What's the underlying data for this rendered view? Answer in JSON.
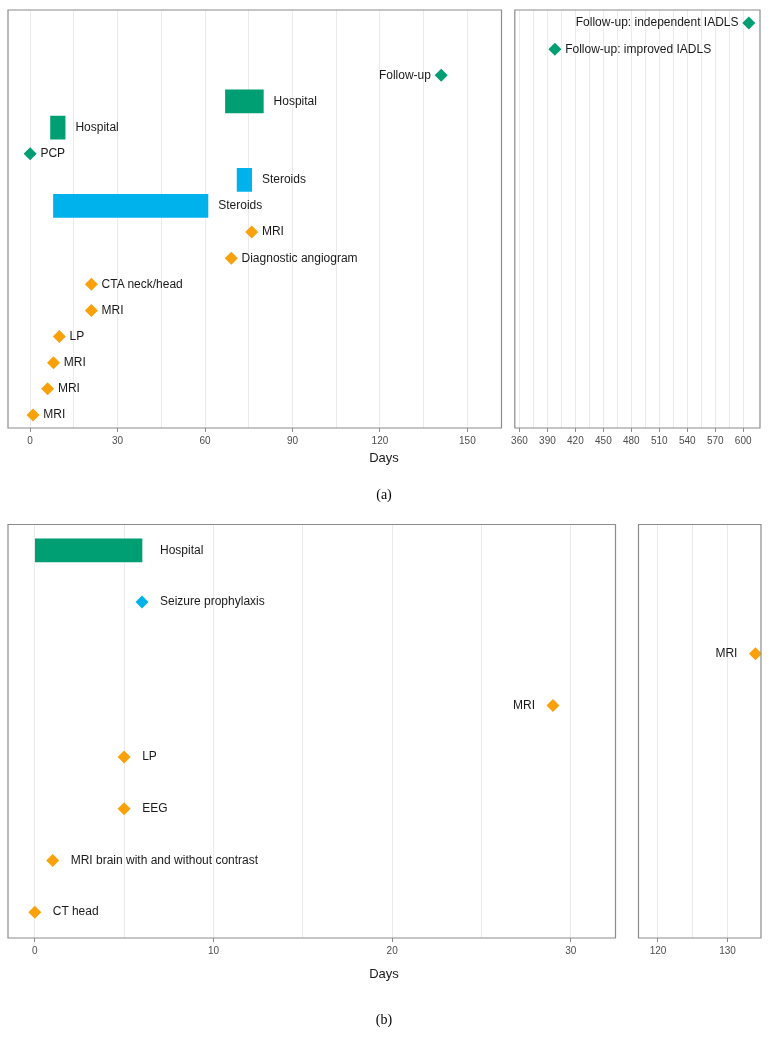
{
  "chart_data": [
    {
      "type": "bar",
      "orientation": "horizontal",
      "xlabel": "Days",
      "annotations": [
        "(a)"
      ],
      "grid": "x",
      "marker": "diamond",
      "categories": [
        null,
        null,
        null,
        null,
        null,
        null,
        null,
        null,
        null,
        null,
        null,
        null,
        null,
        null,
        null,
        null
      ],
      "xlim": [
        -7.6,
        161.7
      ],
      "xticks": [
        0,
        {
          "value": 15,
          "label": null
        },
        30,
        {
          "value": 45,
          "label": null
        },
        60,
        {
          "value": 75,
          "label": null
        },
        90,
        {
          "value": 105,
          "label": null
        },
        120,
        {
          "value": 135,
          "label": null
        },
        150
      ],
      "series": [
        {
          "color": "#009e73",
          "base": [
            null,
            null,
            null,
            67,
            7,
            null,
            null,
            null,
            null,
            null,
            null,
            null,
            null,
            null,
            null,
            null
          ],
          "values": [
            null,
            null,
            null,
            13,
            5,
            null,
            null,
            null,
            null,
            null,
            null,
            null,
            null,
            null,
            null,
            null
          ],
          "value_labels": [
            null,
            null,
            null,
            "Hospital",
            "Hospital",
            null,
            null,
            null,
            null,
            null,
            null,
            null,
            null,
            null,
            null,
            null
          ]
        },
        {
          "color": "#00b2ec",
          "base": [
            null,
            null,
            null,
            null,
            null,
            null,
            71,
            8,
            null,
            null,
            null,
            null,
            null,
            null,
            null,
            null
          ],
          "values": [
            null,
            null,
            null,
            null,
            null,
            null,
            5,
            53,
            null,
            null,
            null,
            null,
            null,
            null,
            null,
            null
          ],
          "value_labels": [
            null,
            null,
            null,
            null,
            null,
            null,
            "Steroids",
            "Steroids",
            null,
            null,
            null,
            null,
            null,
            null,
            null,
            null
          ]
        },
        {
          "type": "scatter",
          "color": "#009e73",
          "values": [
            null,
            null,
            141,
            null,
            null,
            0,
            null,
            null,
            null,
            null,
            null,
            null,
            null,
            null,
            null,
            null
          ],
          "value_labels": [
            null,
            null,
            "Follow-up",
            null,
            null,
            "PCP",
            null,
            null,
            null,
            null,
            null,
            null,
            null,
            null,
            null,
            null
          ]
        },
        {
          "type": "scatter",
          "color": "#f9a10a",
          "values": [
            null,
            null,
            null,
            null,
            null,
            null,
            null,
            null,
            76,
            69,
            21,
            21,
            10,
            8,
            6,
            1
          ],
          "value_labels": [
            null,
            null,
            null,
            null,
            null,
            null,
            null,
            null,
            "MRI",
            "Diagnostic angiogram",
            "CTA neck/head",
            "MRI",
            "LP",
            "MRI",
            "MRI",
            "MRI"
          ]
        }
      ]
    },
    {
      "type": "bar",
      "orientation": "horizontal",
      "grid": "x",
      "marker": "diamond",
      "categories": [
        null,
        null,
        null,
        null,
        null,
        null,
        null,
        null,
        null,
        null,
        null,
        null,
        null,
        null,
        null,
        null
      ],
      "xlim": [
        355,
        618
      ],
      "xticks": [
        360,
        {
          "value": 375,
          "label": null
        },
        390,
        {
          "value": 405,
          "label": null
        },
        420,
        {
          "value": 435,
          "label": null
        },
        450,
        {
          "value": 465,
          "label": null
        },
        480,
        {
          "value": 495,
          "label": null
        },
        510,
        {
          "value": 525,
          "label": null
        },
        540,
        {
          "value": 555,
          "label": null
        },
        570,
        {
          "value": 585,
          "label": null
        },
        600
      ],
      "series": [
        {
          "type": "scatter",
          "color": "#009e73",
          "values": [
            606,
            398,
            null,
            null,
            null,
            null,
            null,
            null,
            null,
            null,
            null,
            null,
            null,
            null,
            null,
            null
          ],
          "value_labels": [
            "Follow-up: independent IADLS",
            "Follow-up: improved IADLS",
            null,
            null,
            null,
            null,
            null,
            null,
            null,
            null,
            null,
            null,
            null,
            null,
            null,
            null
          ]
        }
      ]
    },
    {
      "type": "bar",
      "orientation": "horizontal",
      "xlabel": "Days",
      "annotations": [
        "(b)"
      ],
      "grid": "x",
      "marker": "diamond",
      "categories": [
        null,
        null,
        null,
        null,
        null,
        null,
        null,
        null
      ],
      "xlim": [
        -1.5,
        32.5
      ],
      "xticks": [
        0,
        {
          "value": 5,
          "label": null
        },
        10,
        {
          "value": 15,
          "label": null
        },
        20,
        {
          "value": 25,
          "label": null
        },
        30
      ],
      "series": [
        {
          "color": "#009e73",
          "base": [
            0,
            null,
            null,
            null,
            null,
            null,
            null,
            null
          ],
          "values": [
            6,
            null,
            null,
            null,
            null,
            null,
            null,
            null
          ],
          "value_labels": [
            "Hospital",
            null,
            null,
            null,
            null,
            null,
            null,
            null
          ]
        },
        {
          "type": "scatter",
          "color": "#00b2ec",
          "values": [
            null,
            6,
            null,
            null,
            null,
            null,
            null,
            null
          ],
          "value_labels": [
            null,
            "Seizure prophylaxis",
            null,
            null,
            null,
            null,
            null,
            null
          ]
        },
        {
          "type": "scatter",
          "color": "#f9a10a",
          "values": [
            null,
            null,
            null,
            29,
            5,
            5,
            1,
            0
          ],
          "value_labels": [
            null,
            null,
            null,
            "MRI",
            "LP",
            "EEG",
            "MRI brain with and without contrast",
            "CT head"
          ]
        }
      ]
    },
    {
      "type": "bar",
      "orientation": "horizontal",
      "grid": "x",
      "marker": "diamond",
      "categories": [
        null,
        null,
        null,
        null,
        null,
        null,
        null,
        null
      ],
      "xlim": [
        117.2,
        134.8
      ],
      "xticks": [
        120,
        {
          "value": 125,
          "label": null
        },
        130
      ],
      "series": [
        {
          "type": "scatter",
          "color": "#f9a10a",
          "values": [
            null,
            null,
            134,
            null,
            null,
            null,
            null,
            null
          ],
          "value_labels": [
            null,
            null,
            "MRI",
            null,
            null,
            null,
            null,
            null
          ]
        }
      ]
    }
  ]
}
